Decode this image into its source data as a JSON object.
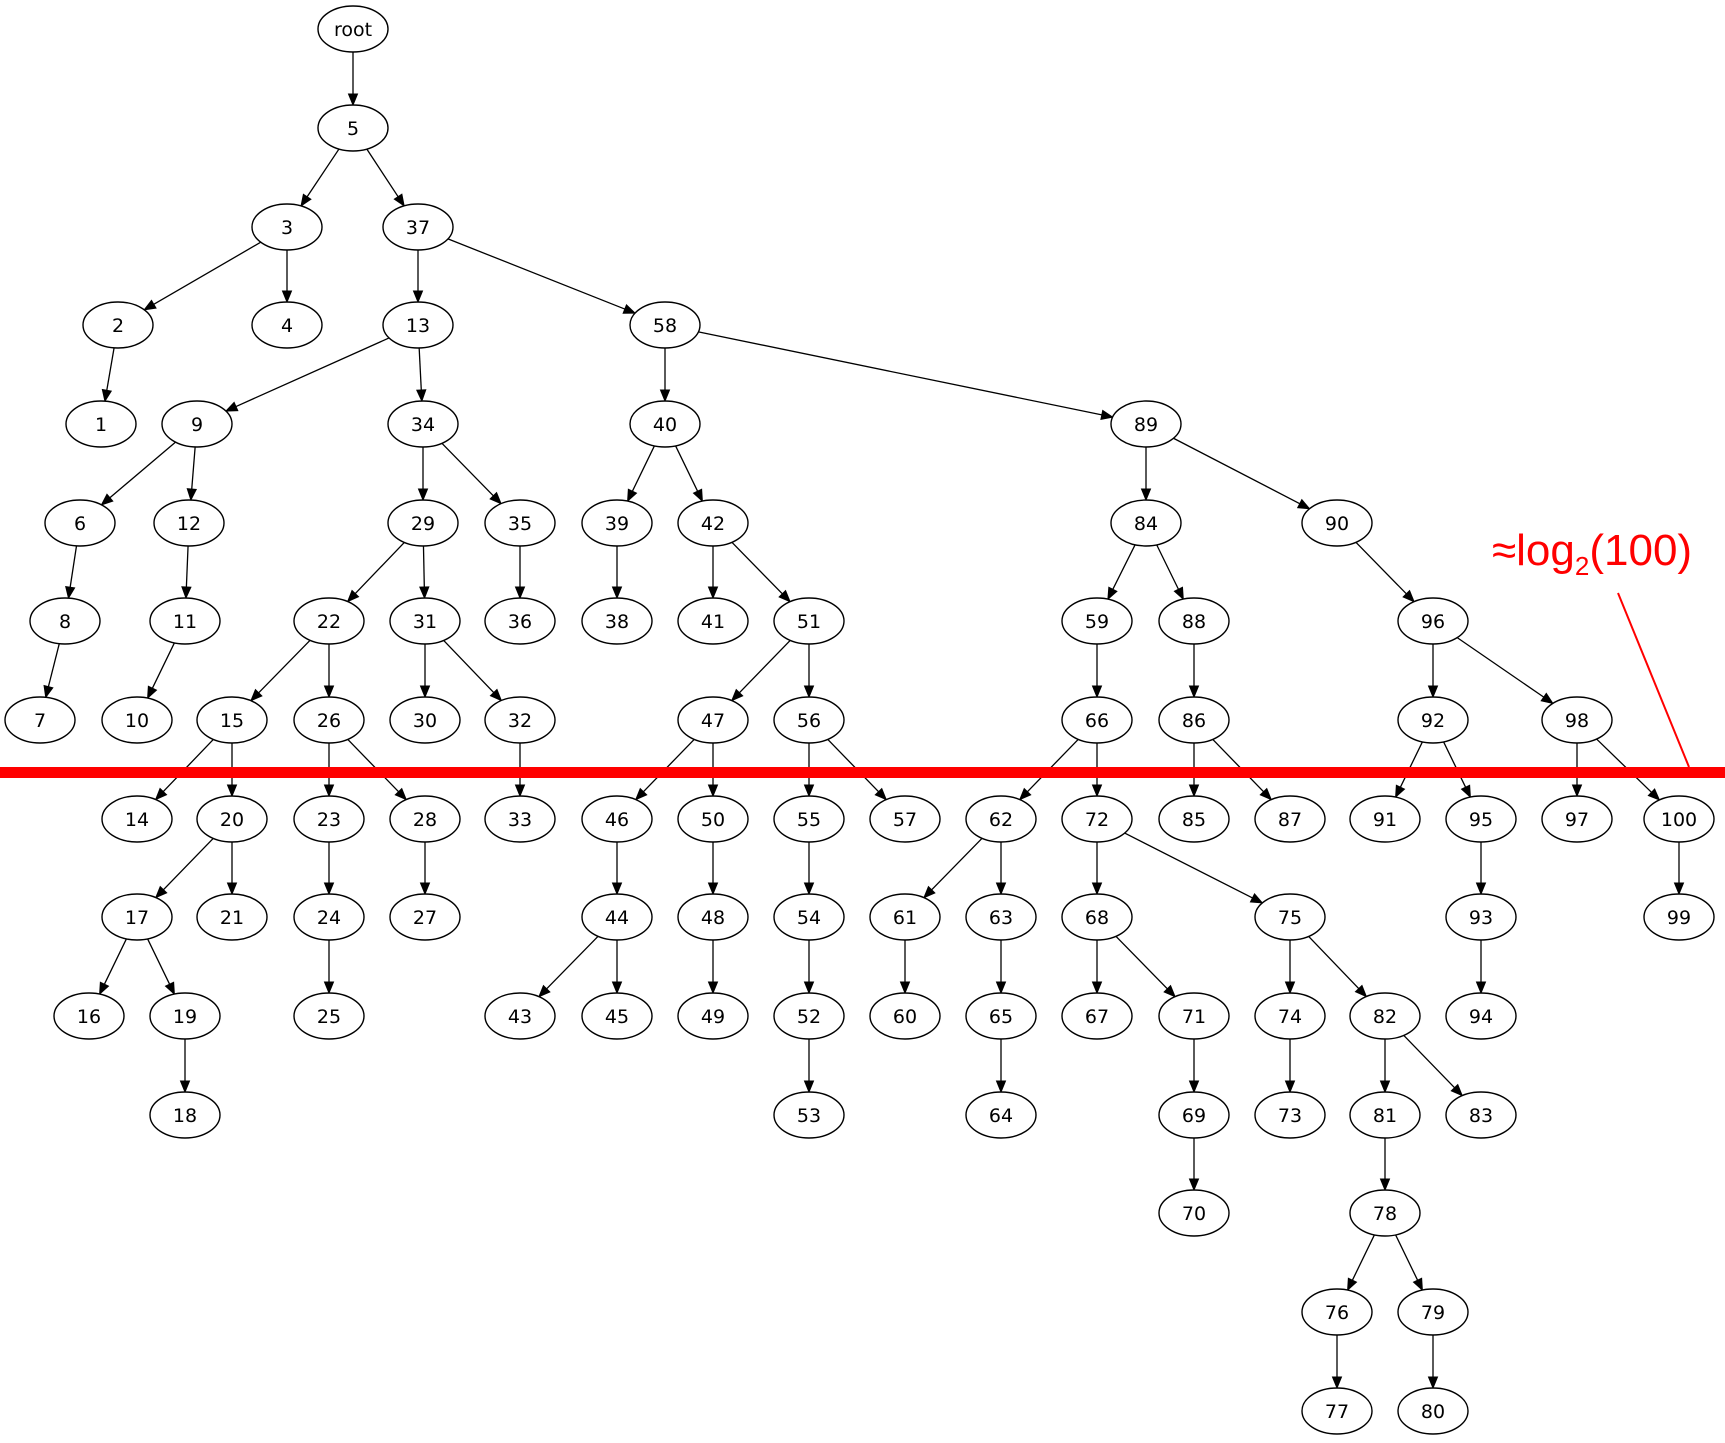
{
  "diagram": {
    "root": "root",
    "nodes": [
      "root",
      "5",
      "3",
      "37",
      "2",
      "4",
      "13",
      "58",
      "1",
      "9",
      "34",
      "40",
      "89",
      "6",
      "12",
      "29",
      "35",
      "39",
      "42",
      "84",
      "90",
      "8",
      "11",
      "22",
      "31",
      "36",
      "38",
      "41",
      "51",
      "59",
      "88",
      "96",
      "7",
      "10",
      "15",
      "26",
      "30",
      "32",
      "47",
      "56",
      "66",
      "86",
      "92",
      "98",
      "14",
      "20",
      "23",
      "28",
      "33",
      "46",
      "50",
      "55",
      "57",
      "62",
      "72",
      "85",
      "87",
      "91",
      "95",
      "97",
      "100",
      "17",
      "21",
      "24",
      "27",
      "44",
      "48",
      "54",
      "61",
      "63",
      "68",
      "75",
      "93",
      "99",
      "16",
      "19",
      "25",
      "43",
      "45",
      "49",
      "52",
      "60",
      "65",
      "67",
      "71",
      "74",
      "82",
      "94",
      "18",
      "53",
      "64",
      "69",
      "73",
      "81",
      "83",
      "70",
      "78",
      "76",
      "79",
      "77",
      "80"
    ],
    "edges": [
      [
        "root",
        "5"
      ],
      [
        "5",
        "3"
      ],
      [
        "5",
        "37"
      ],
      [
        "3",
        "2"
      ],
      [
        "3",
        "4"
      ],
      [
        "2",
        "1"
      ],
      [
        "37",
        "13"
      ],
      [
        "37",
        "58"
      ],
      [
        "13",
        "9"
      ],
      [
        "13",
        "34"
      ],
      [
        "9",
        "6"
      ],
      [
        "9",
        "12"
      ],
      [
        "6",
        "8"
      ],
      [
        "8",
        "7"
      ],
      [
        "12",
        "11"
      ],
      [
        "11",
        "10"
      ],
      [
        "34",
        "29"
      ],
      [
        "34",
        "35"
      ],
      [
        "35",
        "36"
      ],
      [
        "29",
        "22"
      ],
      [
        "29",
        "31"
      ],
      [
        "22",
        "15"
      ],
      [
        "22",
        "26"
      ],
      [
        "31",
        "30"
      ],
      [
        "31",
        "32"
      ],
      [
        "15",
        "14"
      ],
      [
        "15",
        "20"
      ],
      [
        "20",
        "17"
      ],
      [
        "20",
        "21"
      ],
      [
        "17",
        "16"
      ],
      [
        "17",
        "19"
      ],
      [
        "19",
        "18"
      ],
      [
        "26",
        "23"
      ],
      [
        "26",
        "28"
      ],
      [
        "23",
        "24"
      ],
      [
        "24",
        "25"
      ],
      [
        "28",
        "27"
      ],
      [
        "32",
        "33"
      ],
      [
        "58",
        "40"
      ],
      [
        "58",
        "89"
      ],
      [
        "40",
        "39"
      ],
      [
        "40",
        "42"
      ],
      [
        "39",
        "38"
      ],
      [
        "42",
        "41"
      ],
      [
        "42",
        "51"
      ],
      [
        "51",
        "47"
      ],
      [
        "51",
        "56"
      ],
      [
        "47",
        "46"
      ],
      [
        "47",
        "50"
      ],
      [
        "46",
        "44"
      ],
      [
        "44",
        "43"
      ],
      [
        "44",
        "45"
      ],
      [
        "50",
        "48"
      ],
      [
        "48",
        "49"
      ],
      [
        "56",
        "55"
      ],
      [
        "56",
        "57"
      ],
      [
        "55",
        "54"
      ],
      [
        "54",
        "52"
      ],
      [
        "52",
        "53"
      ],
      [
        "89",
        "84"
      ],
      [
        "89",
        "90"
      ],
      [
        "84",
        "59"
      ],
      [
        "84",
        "88"
      ],
      [
        "59",
        "66"
      ],
      [
        "66",
        "62"
      ],
      [
        "66",
        "72"
      ],
      [
        "62",
        "61"
      ],
      [
        "62",
        "63"
      ],
      [
        "61",
        "60"
      ],
      [
        "63",
        "65"
      ],
      [
        "65",
        "64"
      ],
      [
        "72",
        "68"
      ],
      [
        "72",
        "75"
      ],
      [
        "68",
        "67"
      ],
      [
        "68",
        "71"
      ],
      [
        "71",
        "69"
      ],
      [
        "69",
        "70"
      ],
      [
        "75",
        "74"
      ],
      [
        "75",
        "82"
      ],
      [
        "74",
        "73"
      ],
      [
        "82",
        "81"
      ],
      [
        "82",
        "83"
      ],
      [
        "81",
        "78"
      ],
      [
        "78",
        "76"
      ],
      [
        "78",
        "79"
      ],
      [
        "76",
        "77"
      ],
      [
        "79",
        "80"
      ],
      [
        "88",
        "86"
      ],
      [
        "86",
        "85"
      ],
      [
        "86",
        "87"
      ],
      [
        "90",
        "96"
      ],
      [
        "96",
        "92"
      ],
      [
        "96",
        "98"
      ],
      [
        "92",
        "91"
      ],
      [
        "92",
        "95"
      ],
      [
        "95",
        "93"
      ],
      [
        "93",
        "94"
      ],
      [
        "98",
        "97"
      ],
      [
        "98",
        "100"
      ],
      [
        "100",
        "99"
      ]
    ]
  },
  "annotation": {
    "prefix": "≈log",
    "subscript": "2",
    "suffix": "(100)",
    "color": "#ff0000"
  }
}
